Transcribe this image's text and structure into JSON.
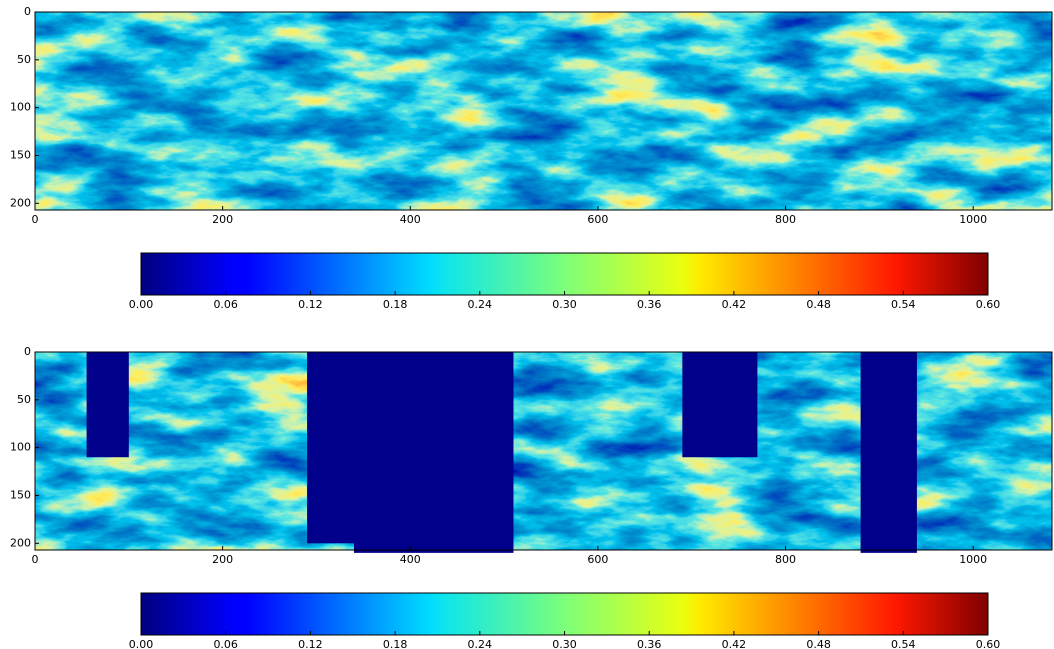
{
  "chart_data": [
    {
      "type": "heatmap",
      "xlim": [
        0,
        1084
      ],
      "ylim": [
        207,
        0
      ],
      "xticks": [
        0,
        200,
        400,
        600,
        800,
        1000
      ],
      "yticks": [
        0,
        50,
        100,
        150,
        200
      ],
      "colorbar": {
        "cmap": "jet",
        "clim": [
          0,
          0.6
        ],
        "ticks": [
          {
            "value": 0,
            "label": "0.00"
          },
          0.06,
          0.12,
          0.18,
          0.24,
          {
            "value": 0.3,
            "label": "0.30"
          },
          0.36,
          0.42,
          0.48,
          0.54,
          {
            "value": 0.6,
            "label": "0.60"
          }
        ]
      }
    },
    {
      "type": "heatmap",
      "xlim": [
        0,
        1084
      ],
      "ylim": [
        207,
        0
      ],
      "xticks": [
        0,
        200,
        400,
        600,
        800,
        1000
      ],
      "yticks": [
        0,
        50,
        100,
        150,
        200
      ],
      "colorbar": {
        "cmap": "jet",
        "clim": [
          0,
          0.6
        ],
        "ticks": [
          {
            "value": 0,
            "label": "0.00"
          },
          0.06,
          0.12,
          0.18,
          0.24,
          {
            "value": 0.3,
            "label": "0.30"
          },
          0.36,
          0.42,
          0.48,
          0.54,
          {
            "value": 0.6,
            "label": "0.60"
          }
        ]
      }
    }
  ]
}
